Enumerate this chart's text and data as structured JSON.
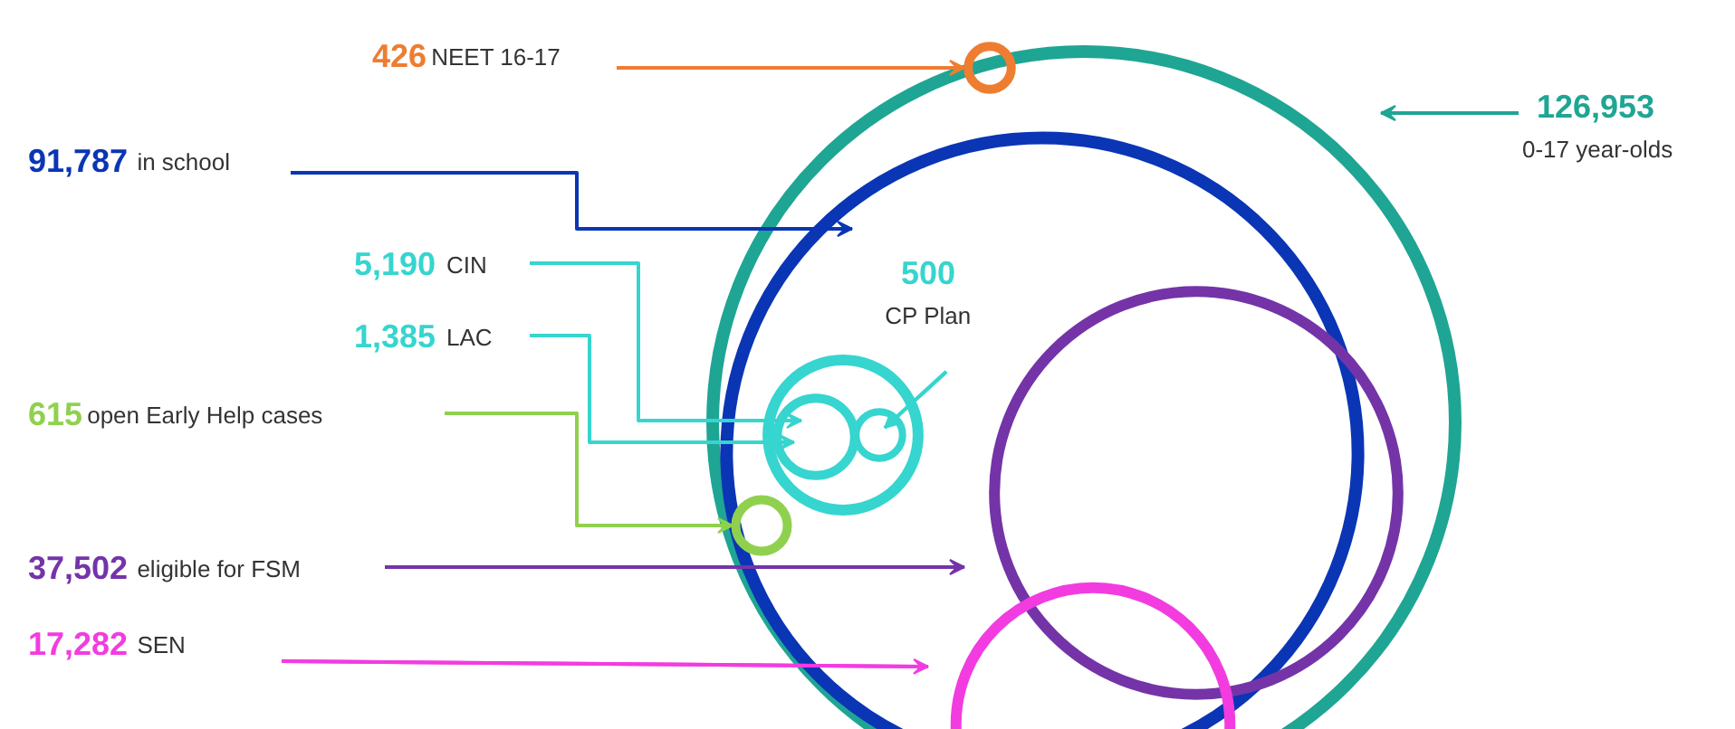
{
  "chart_data": {
    "type": "other",
    "categories": [
      "0-17 year-olds",
      "in school",
      "eligible for FSM",
      "SEN",
      "CIN",
      "LAC",
      "CP Plan",
      "open Early Help cases",
      "NEET 16-17"
    ],
    "values": [
      126953,
      91787,
      37502,
      17282,
      5190,
      1385,
      500,
      615,
      426
    ],
    "value_labels": [
      "126,953",
      "91,787",
      "37,502",
      "17,282",
      "5,190",
      "1,385",
      "500",
      "615",
      "426"
    ],
    "colors": [
      "#1fa594",
      "#0a35b5",
      "#7434a8",
      "#f23ce0",
      "#36d5cf",
      "#36d5cf",
      "#36d5cf",
      "#8fd14f",
      "#ee7d31"
    ]
  }
}
